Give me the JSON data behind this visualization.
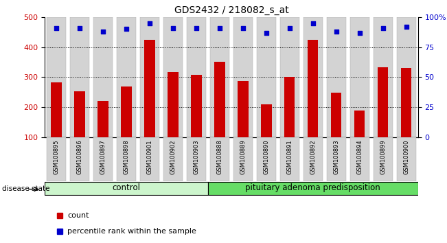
{
  "title": "GDS2432 / 218082_s_at",
  "samples": [
    "GSM100895",
    "GSM100896",
    "GSM100897",
    "GSM100898",
    "GSM100901",
    "GSM100902",
    "GSM100903",
    "GSM100888",
    "GSM100889",
    "GSM100890",
    "GSM100891",
    "GSM100892",
    "GSM100893",
    "GSM100894",
    "GSM100899",
    "GSM100900"
  ],
  "bar_values": [
    283,
    252,
    220,
    268,
    425,
    318,
    308,
    350,
    288,
    210,
    300,
    425,
    248,
    190,
    333,
    330
  ],
  "dot_values": [
    91,
    91,
    88,
    90,
    95,
    91,
    91,
    91,
    91,
    87,
    91,
    95,
    88,
    87,
    91,
    92
  ],
  "groups": [
    {
      "label": "control",
      "start": 0,
      "end": 7,
      "color": "#ccf5cc"
    },
    {
      "label": "pituitary adenoma predisposition",
      "start": 7,
      "end": 16,
      "color": "#66dd66"
    }
  ],
  "bar_color": "#cc0000",
  "dot_color": "#0000cc",
  "ylim_left": [
    100,
    500
  ],
  "ylim_right": [
    0,
    100
  ],
  "yticks_left": [
    100,
    200,
    300,
    400,
    500
  ],
  "yticks_right": [
    0,
    25,
    50,
    75,
    100
  ],
  "ytick_labels_right": [
    "0",
    "25",
    "50",
    "75",
    "100%"
  ],
  "grid_values": [
    200,
    300,
    400
  ],
  "bar_bg_color": "#d3d3d3",
  "legend_items": [
    {
      "color": "#cc0000",
      "label": "count"
    },
    {
      "color": "#0000cc",
      "label": "percentile rank within the sample"
    }
  ],
  "disease_state_label": "disease state",
  "ylabel_left_color": "#cc0000",
  "ylabel_right_color": "#0000cc",
  "n_control": 7,
  "n_total": 16
}
